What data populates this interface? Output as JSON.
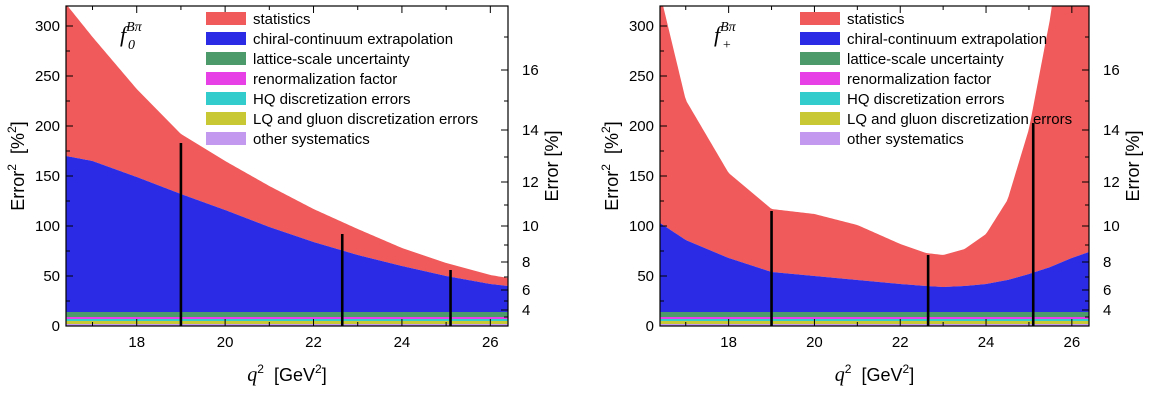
{
  "chart_data": [
    {
      "type": "area",
      "panel_label": {
        "base": "f",
        "subscript": "0",
        "superscript": "Bπ"
      },
      "xlabel": {
        "var": "q",
        "power": "2",
        "unit": "[GeV",
        "unit_power": "2",
        "unit_close": "]"
      },
      "ylabel": {
        "text": "Error",
        "power": "2",
        "unit": "[%",
        "unit_power": "2",
        "unit_close": "]"
      },
      "y2label": "Error [%]",
      "xlim": [
        16.4,
        26.4
      ],
      "ylim": [
        0,
        320
      ],
      "x_ticks": [
        18,
        20,
        22,
        24,
        26
      ],
      "y_ticks": [
        0,
        50,
        100,
        150,
        200,
        250,
        300
      ],
      "y2_ticks": [
        4,
        6,
        8,
        10,
        12,
        14,
        16
      ],
      "x": [
        16.4,
        17.0,
        18.0,
        19.0,
        20.0,
        21.0,
        22.0,
        23.0,
        24.0,
        25.0,
        26.0,
        26.4
      ],
      "series": [
        {
          "name": "statistics",
          "color": "#f05a5a",
          "values": [
            152,
            124,
            88,
            60,
            49,
            41,
            33,
            26,
            18,
            13,
            9,
            8
          ]
        },
        {
          "name": "chiral-continuum extrapolation",
          "color": "#2b2be6",
          "values": [
            156,
            151,
            135,
            118,
            102,
            85,
            70,
            57,
            46,
            36,
            28,
            26
          ]
        },
        {
          "name": "lattice-scale uncertainty",
          "color": "#4c9a6a",
          "values": [
            5,
            5,
            5,
            5,
            5,
            5,
            5,
            5,
            5,
            5,
            5,
            5
          ]
        },
        {
          "name": "renormalization factor",
          "color": "#e640e6",
          "values": [
            2,
            2,
            2,
            2,
            2,
            2,
            2,
            2,
            2,
            2,
            2,
            2
          ]
        },
        {
          "name": "HQ discretization errors",
          "color": "#33cccc",
          "values": [
            2,
            2,
            2,
            2,
            2,
            2,
            2,
            2,
            2,
            2,
            2,
            2
          ]
        },
        {
          "name": "LQ and gluon discretization errors",
          "color": "#c8c834",
          "values": [
            3,
            3,
            3,
            3,
            3,
            3,
            3,
            3,
            3,
            3,
            3,
            3
          ]
        },
        {
          "name": "other systematics",
          "color": "#c399f0",
          "values": [
            2,
            2,
            2,
            2,
            2,
            2,
            2,
            2,
            2,
            2,
            2,
            2
          ]
        }
      ],
      "markers": [
        {
          "x": 19.0,
          "y": 183
        },
        {
          "x": 22.65,
          "y": 92
        },
        {
          "x": 25.1,
          "y": 56
        }
      ]
    },
    {
      "type": "area",
      "panel_label": {
        "base": "f",
        "subscript": "+",
        "superscript": "Bπ"
      },
      "xlabel": {
        "var": "q",
        "power": "2",
        "unit": "[GeV",
        "unit_power": "2",
        "unit_close": "]"
      },
      "ylabel": {
        "text": "Error",
        "power": "2",
        "unit": "[%",
        "unit_power": "2",
        "unit_close": "]"
      },
      "y2label": "Error [%]",
      "xlim": [
        16.4,
        26.4
      ],
      "ylim": [
        0,
        320
      ],
      "x_ticks": [
        18,
        20,
        22,
        24,
        26
      ],
      "y_ticks": [
        0,
        50,
        100,
        150,
        200,
        250,
        300
      ],
      "y2_ticks": [
        4,
        6,
        8,
        10,
        12,
        14,
        16
      ],
      "x": [
        16.4,
        17.0,
        18.0,
        19.0,
        20.0,
        21.0,
        22.0,
        22.6,
        23.0,
        23.5,
        24.0,
        24.5,
        25.0,
        25.5,
        26.0,
        26.4
      ],
      "series": [
        {
          "name": "statistics",
          "color": "#f05a5a",
          "values": [
            230,
            140,
            85,
            63,
            62,
            55,
            40,
            33,
            32,
            37,
            50,
            80,
            145,
            250,
            400,
            560
          ]
        },
        {
          "name": "chiral-continuum extrapolation",
          "color": "#2b2be6",
          "values": [
            89,
            72,
            54,
            40,
            36,
            32,
            28,
            26,
            25,
            26,
            28,
            32,
            38,
            45,
            54,
            60
          ]
        },
        {
          "name": "lattice-scale uncertainty",
          "color": "#4c9a6a",
          "values": [
            5,
            5,
            5,
            5,
            5,
            5,
            5,
            5,
            5,
            5,
            5,
            5,
            5,
            5,
            5,
            5
          ]
        },
        {
          "name": "renormalization factor",
          "color": "#e640e6",
          "values": [
            2,
            2,
            2,
            2,
            2,
            2,
            2,
            2,
            2,
            2,
            2,
            2,
            2,
            2,
            2,
            2
          ]
        },
        {
          "name": "HQ discretization errors",
          "color": "#33cccc",
          "values": [
            2,
            2,
            2,
            2,
            2,
            2,
            2,
            2,
            2,
            2,
            2,
            2,
            2,
            2,
            2,
            2
          ]
        },
        {
          "name": "LQ and gluon discretization errors",
          "color": "#c8c834",
          "values": [
            3,
            3,
            3,
            3,
            3,
            3,
            3,
            3,
            3,
            3,
            3,
            3,
            3,
            3,
            3,
            3
          ]
        },
        {
          "name": "other systematics",
          "color": "#c399f0",
          "values": [
            2,
            2,
            2,
            2,
            2,
            2,
            2,
            2,
            2,
            2,
            2,
            2,
            2,
            2,
            2,
            2
          ]
        }
      ],
      "markers": [
        {
          "x": 19.0,
          "y": 115
        },
        {
          "x": 22.65,
          "y": 71
        },
        {
          "x": 25.1,
          "y": 203
        }
      ]
    }
  ]
}
